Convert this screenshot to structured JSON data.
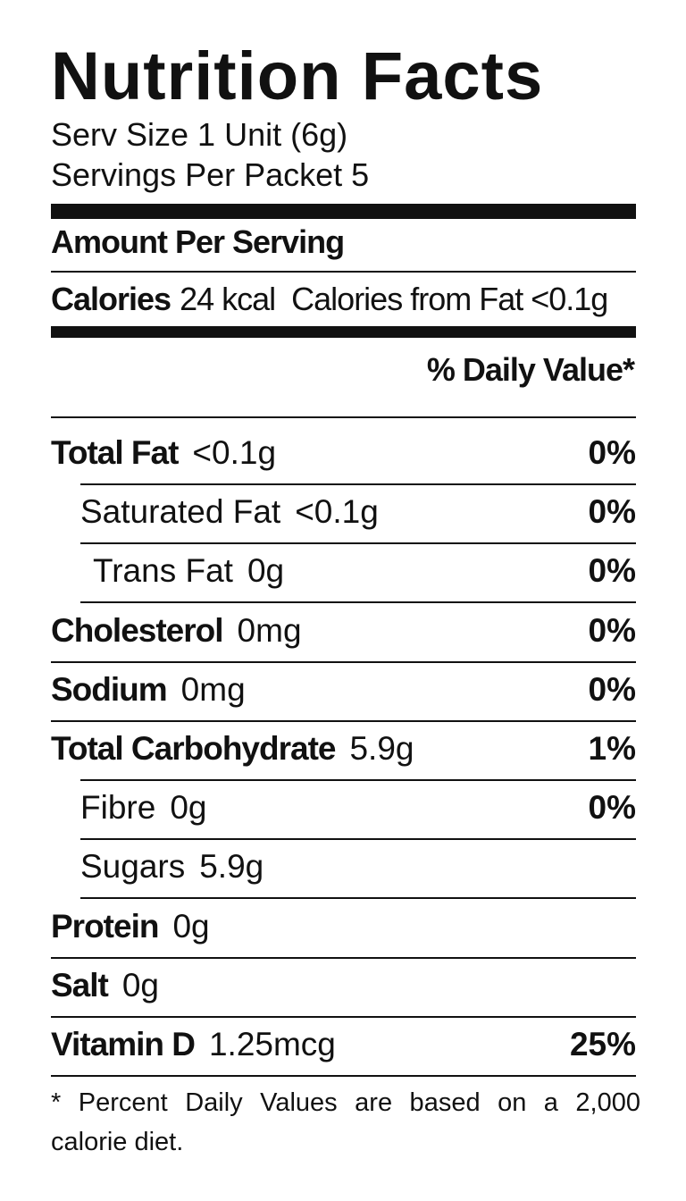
{
  "title": "Nutrition Facts",
  "serving": {
    "size": "Serv Size 1 Unit (6g)",
    "per_packet": "Servings Per Packet 5"
  },
  "amount_header": "Amount Per Serving",
  "calories": {
    "label": "Calories",
    "value": "24 kcal",
    "from_fat": "Calories from Fat <0.1g"
  },
  "dv_header": "% Daily Value*",
  "rows": [
    {
      "name": "Total Fat",
      "amount": "<0.1g",
      "dv": "0%"
    },
    {
      "name": "Saturated Fat",
      "amount": "<0.1g",
      "dv": "0%"
    },
    {
      "name": "Trans Fat",
      "amount": "0g",
      "dv": "0%"
    },
    {
      "name": "Cholesterol",
      "amount": "0mg",
      "dv": "0%"
    },
    {
      "name": "Sodium",
      "amount": "0mg",
      "dv": "0%"
    },
    {
      "name": "Total Carbohydrate",
      "amount": "5.9g",
      "dv": "1%"
    },
    {
      "name": "Fibre",
      "amount": "0g",
      "dv": "0%"
    },
    {
      "name": "Sugars",
      "amount": "5.9g"
    },
    {
      "name": "Protein",
      "amount": "0g"
    },
    {
      "name": "Salt",
      "amount": "0g"
    },
    {
      "name": "Vitamin D",
      "amount": "1.25mcg",
      "dv": "25%"
    }
  ],
  "footnote": "* Percent Daily Values are based on a 2,000 calorie diet."
}
